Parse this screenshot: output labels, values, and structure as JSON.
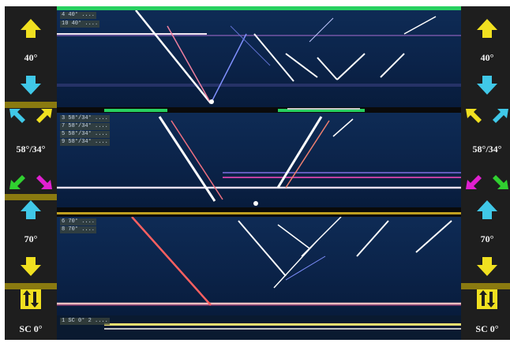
{
  "left_column": {
    "labels": [
      "40°",
      "58°/34°",
      "70°",
      "SC 0°"
    ]
  },
  "right_column": {
    "labels": [
      "40°",
      "58°/34°",
      "70°",
      "SC 0°"
    ]
  },
  "panels": {
    "top_tags": [
      "4 40° ....",
      "10 40° ...."
    ],
    "middle_tags": [
      "3 58°/34° ....",
      "7 58°/34° ....",
      "5 58°/34° ....",
      "9 58°/34° ...."
    ],
    "lower_tags": [
      "6 70° ....",
      "8 70° ...."
    ],
    "bottom_tag": "1 SC 0° 2 ...."
  },
  "colors": {
    "arrow_yellow": "#f0e020",
    "arrow_cyan": "#40c8e8",
    "arrow_green": "#30d030",
    "arrow_magenta": "#e020d0",
    "accent_green": "#28d060"
  },
  "icons": [
    "arrow-up-icon",
    "arrow-down-icon",
    "arrow-diagonal-icon",
    "swap-arrows-icon"
  ]
}
